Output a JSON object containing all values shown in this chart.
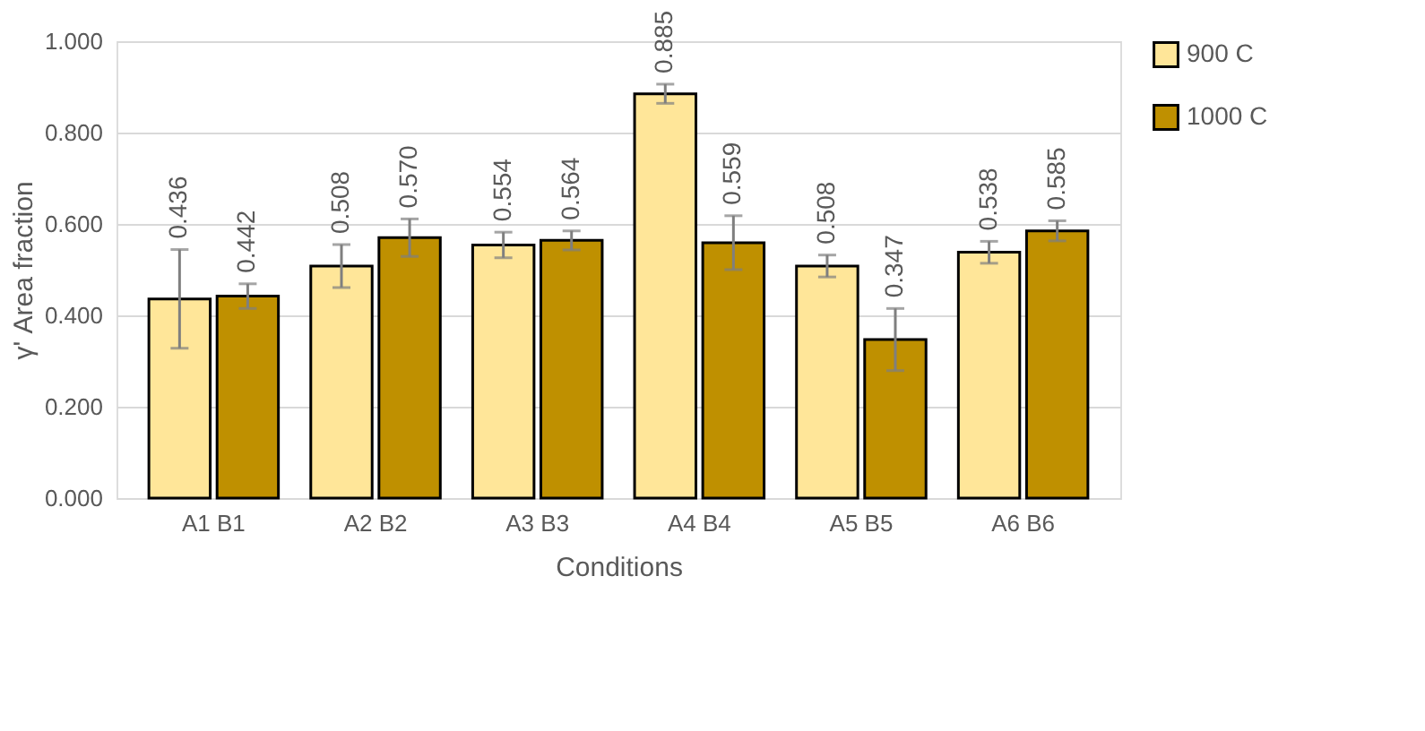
{
  "chart_data": {
    "type": "bar",
    "xlabel": "Conditions",
    "ylabel": "γ' Area fraction",
    "categories": [
      "A1 B1",
      "A2 B2",
      "A3 B3",
      "A4 B4",
      "A5 B5",
      "A6 B6"
    ],
    "series": [
      {
        "name": "900 C",
        "color": "#ffe699",
        "values": [
          0.436,
          0.508,
          0.554,
          0.885,
          0.508,
          0.538
        ],
        "errors": [
          0.108,
          0.047,
          0.028,
          0.021,
          0.024,
          0.024
        ],
        "value_labels": [
          "0.436",
          "0.508",
          "0.554",
          "0.885",
          "0.508",
          "0.538"
        ]
      },
      {
        "name": "1000 C",
        "color": "#bf9000",
        "values": [
          0.442,
          0.57,
          0.564,
          0.559,
          0.347,
          0.585
        ],
        "errors": [
          0.027,
          0.041,
          0.021,
          0.059,
          0.068,
          0.022
        ],
        "value_labels": [
          "0.442",
          "0.570",
          "0.564",
          "0.559",
          "0.347",
          "0.585"
        ]
      }
    ],
    "ylim": [
      0,
      1.0
    ],
    "yticks": [
      {
        "value": 0,
        "label": "0.000"
      },
      {
        "value": 0.2,
        "label": "0.200"
      },
      {
        "value": 0.4,
        "label": "0.400"
      },
      {
        "value": 0.6,
        "label": "0.600"
      },
      {
        "value": 0.8,
        "label": "0.800"
      },
      {
        "value": 1.0,
        "label": "1.000"
      }
    ],
    "grid": "y",
    "legend": "right"
  }
}
